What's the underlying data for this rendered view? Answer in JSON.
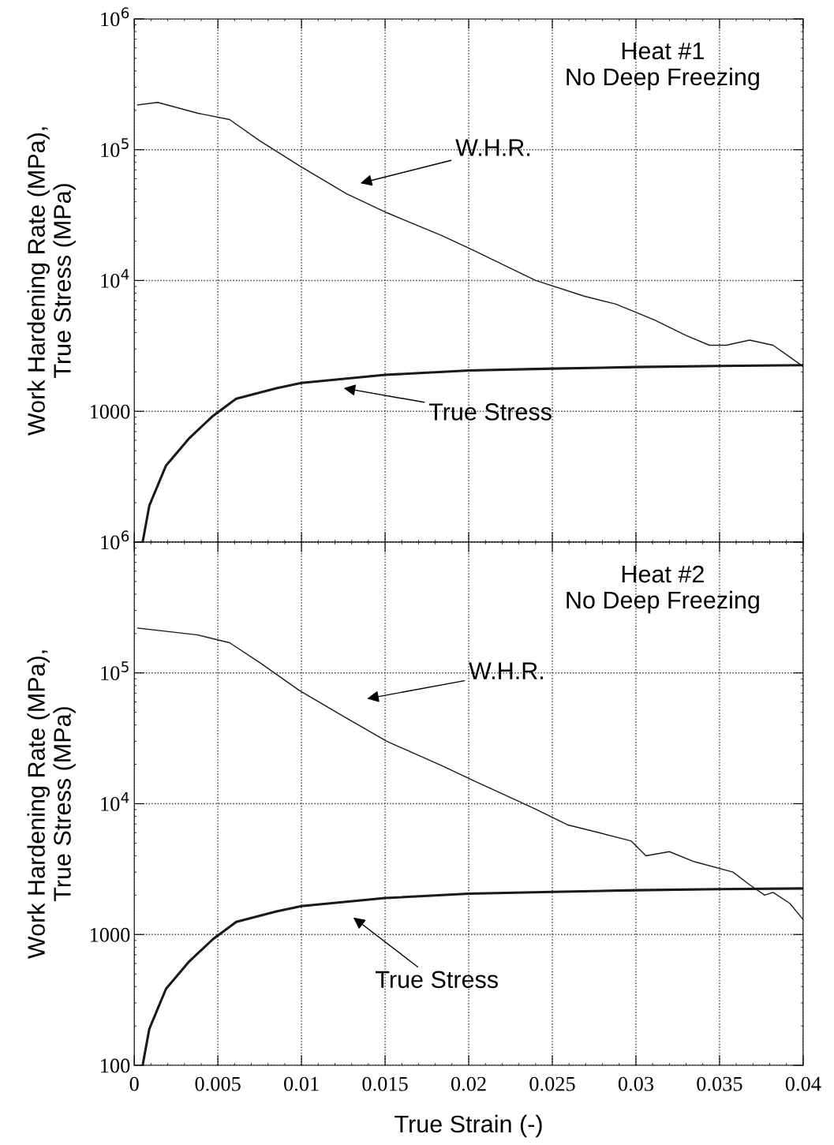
{
  "chart_data": [
    {
      "type": "line",
      "ylabel": "Work Hardening Rate (MPa),\nTrue Stress (MPa)",
      "log": "y",
      "grid": true,
      "tick_labels": "y",
      "xlim": [
        0,
        0.04
      ],
      "xticks": [
        0,
        0.005,
        0.01,
        0.015,
        0.02,
        0.025,
        0.03,
        0.035,
        0.04
      ],
      "ylim": [
        100,
        1000000
      ],
      "yticks": [
        {
          "value": 100,
          "label": null
        },
        1000,
        {
          "value": 10000,
          "label": "10$^{4}$"
        },
        {
          "value": 100000,
          "label": "10$^{5}$"
        },
        {
          "value": 1000000,
          "label": "10$^{6}$"
        }
      ],
      "series": [
        {
          "color": "#1a1a1a",
          "x": [
            0.0002,
            0.0014,
            0.0038,
            0.0057,
            0.0075,
            0.0099,
            0.0127,
            0.0151,
            0.0184,
            0.0203,
            0.024,
            0.0269,
            0.0288,
            0.0311,
            0.033,
            0.0344,
            0.0354,
            0.0368,
            0.0382,
            0.0392,
            0.04
          ],
          "values": [
            220000,
            230000,
            190000,
            170000,
            117000,
            75000,
            46000,
            33000,
            22000,
            17000,
            10000,
            7600,
            6600,
            5000,
            3800,
            3200,
            3200,
            3500,
            3200,
            2600,
            2200
          ]
        },
        {
          "color": "#1a1a1a",
          "x": [
            0.0005,
            0.0009,
            0.0019,
            0.0033,
            0.0047,
            0.0061,
            0.0085,
            0.01,
            0.015,
            0.02,
            0.025,
            0.03,
            0.035,
            0.04
          ],
          "values": [
            100,
            190,
            385,
            625,
            920,
            1250,
            1500,
            1650,
            1900,
            2050,
            2120,
            2180,
            2220,
            2250
          ]
        }
      ],
      "annotations": [
        "Heat #1\nNo Deep Freezing",
        "W.H.R.",
        "True Stress"
      ]
    },
    {
      "type": "line",
      "xlabel": "True Strain (-)",
      "ylabel": "Work Hardening Rate (MPa),\nTrue Stress (MPa)",
      "log": "y",
      "grid": true,
      "xlim": [
        0,
        0.04
      ],
      "xticks": [
        0,
        0.005,
        0.01,
        0.015,
        0.02,
        0.025,
        0.03,
        0.035,
        0.04
      ],
      "ylim": [
        100,
        1000000
      ],
      "yticks": [
        100,
        1000,
        {
          "value": 10000,
          "label": "10$^{4}$"
        },
        {
          "value": 100000,
          "label": "10$^{5}$"
        },
        {
          "value": 1000000,
          "label": "10$^{6}$"
        }
      ],
      "series": [
        {
          "color": "#1a1a1a",
          "x": [
            0.0002,
            0.0038,
            0.0057,
            0.0075,
            0.0099,
            0.0127,
            0.0151,
            0.0184,
            0.0203,
            0.024,
            0.0259,
            0.0278,
            0.0297,
            0.0306,
            0.032,
            0.0335,
            0.0358,
            0.0368,
            0.0377,
            0.0382,
            0.0392,
            0.04
          ],
          "values": [
            220000,
            195000,
            170000,
            120000,
            73000,
            45000,
            30000,
            19500,
            15000,
            9100,
            6900,
            6000,
            5200,
            4000,
            4300,
            3600,
            3000,
            2400,
            2000,
            2100,
            1730,
            1300
          ]
        },
        {
          "color": "#1a1a1a",
          "x": [
            0.0005,
            0.0009,
            0.0019,
            0.0033,
            0.0047,
            0.0061,
            0.0085,
            0.01,
            0.015,
            0.02,
            0.025,
            0.03,
            0.035,
            0.04
          ],
          "values": [
            100,
            190,
            385,
            625,
            920,
            1250,
            1500,
            1650,
            1900,
            2050,
            2120,
            2180,
            2220,
            2250
          ]
        }
      ],
      "annotations": [
        "Heat #2\nNo Deep Freezing",
        "W.H.R.",
        "True Stress"
      ]
    }
  ]
}
